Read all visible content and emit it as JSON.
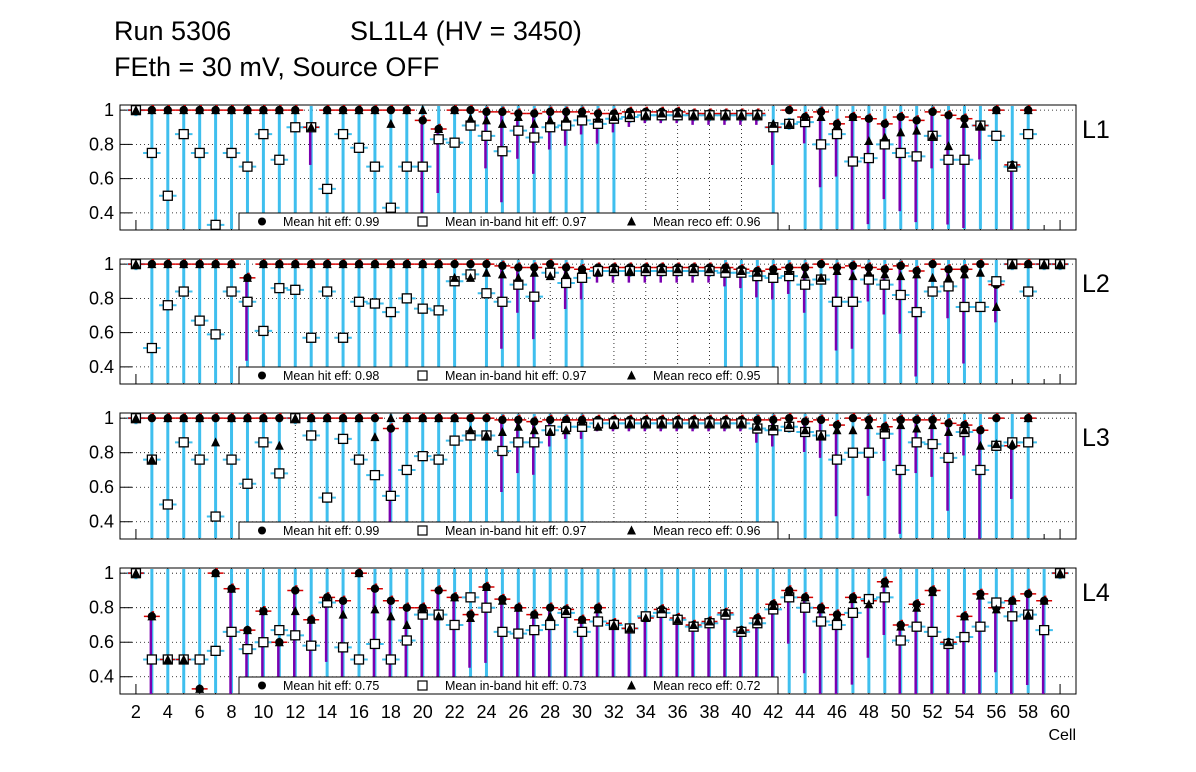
{
  "header": {
    "run": "Run 5306",
    "superlayer": "SL1L4 (HV = 3450)",
    "conditions": "FEth = 30 mV, Source OFF"
  },
  "chart_data": {
    "type": "scatter",
    "xlabel": "Cell",
    "x_ticks": [
      2,
      4,
      6,
      8,
      10,
      12,
      14,
      16,
      18,
      20,
      22,
      24,
      26,
      28,
      30,
      32,
      34,
      36,
      38,
      40,
      42,
      44,
      46,
      48,
      50,
      52,
      54,
      56,
      58,
      60
    ],
    "xlim": [
      1,
      61
    ],
    "ylim": [
      0.3,
      1.03
    ],
    "y_ticks": [
      0.4,
      0.6,
      0.8,
      1
    ],
    "y_tick_labels": [
      "0.4",
      "0.6",
      "0.8",
      "1"
    ],
    "grid": true,
    "colors": {
      "hit": "#000000",
      "inband": "#000000",
      "reco": "#000000",
      "bar_cyan": "#3fbfee",
      "bar_purple": "#7a00b0",
      "bar_red": "#d40000"
    },
    "legend_labels": {
      "hit": "Mean hit  eff:",
      "inband": "Mean in-band hit eff:",
      "reco": "Mean reco eff:"
    },
    "panels": [
      {
        "name": "L1",
        "mean_hit": "0.99",
        "mean_inband": "0.97",
        "mean_reco": "0.96",
        "cells": [
          2,
          3,
          4,
          5,
          6,
          7,
          8,
          9,
          10,
          11,
          12,
          13,
          14,
          15,
          16,
          17,
          18,
          19,
          20,
          21,
          22,
          23,
          24,
          25,
          26,
          27,
          28,
          29,
          30,
          31,
          32,
          33,
          34,
          35,
          36,
          37,
          38,
          39,
          40,
          41,
          42,
          43,
          44,
          45,
          46,
          47,
          48,
          49,
          50,
          51,
          52,
          53,
          54,
          55,
          56,
          57,
          58
        ],
        "hit": [
          1,
          1,
          1,
          1,
          1,
          1,
          1,
          1,
          1,
          1,
          1,
          0.9,
          1,
          1,
          1,
          1,
          1,
          1,
          0.94,
          0.89,
          1,
          1,
          0.99,
          0.99,
          0.98,
          0.98,
          0.99,
          0.99,
          0.99,
          0.98,
          0.98,
          0.99,
          0.99,
          0.99,
          0.99,
          0.98,
          0.98,
          0.98,
          0.98,
          0.98,
          0.9,
          1,
          0.96,
          0.99,
          0.92,
          0.96,
          0.95,
          0.92,
          0.96,
          0.94,
          0.99,
          0.97,
          0.95,
          0.91,
          1,
          0.68,
          1
        ],
        "inband": [
          1,
          0.75,
          0.5,
          0.86,
          0.75,
          0.33,
          0.75,
          0.67,
          0.86,
          0.71,
          0.9,
          0.9,
          0.54,
          0.86,
          0.78,
          0.67,
          0.43,
          0.67,
          0.67,
          0.83,
          0.81,
          0.91,
          0.85,
          0.76,
          0.88,
          0.84,
          0.9,
          0.91,
          0.94,
          0.92,
          0.95,
          0.96,
          0.97,
          0.97,
          0.97,
          0.97,
          0.97,
          0.97,
          0.97,
          0.97,
          0.9,
          0.92,
          0.93,
          0.8,
          0.86,
          0.7,
          0.72,
          0.8,
          0.75,
          0.73,
          0.85,
          0.71,
          0.71,
          0.91,
          0.85,
          0.67,
          0.86
        ],
        "reco": [
          1,
          1,
          1,
          1,
          1,
          1,
          1,
          1,
          1,
          1,
          1,
          0.9,
          1,
          1,
          1,
          1,
          0.92,
          1,
          1,
          0.89,
          1,
          0.95,
          0.94,
          0.92,
          0.96,
          0.92,
          0.94,
          0.95,
          0.98,
          0.95,
          0.96,
          0.97,
          0.97,
          0.98,
          0.98,
          0.97,
          0.97,
          0.97,
          0.97,
          0.97,
          0.92,
          0.92,
          0.96,
          0.96,
          0.91,
          0.96,
          0.82,
          0.84,
          0.87,
          0.88,
          0.85,
          0.79,
          0.92,
          0.91,
          1,
          0.68,
          1
        ]
      },
      {
        "name": "L2",
        "mean_hit": "0.98",
        "mean_inband": "0.97",
        "mean_reco": "0.95",
        "cells": [
          2,
          3,
          4,
          5,
          6,
          7,
          8,
          9,
          10,
          11,
          12,
          13,
          14,
          15,
          16,
          17,
          18,
          19,
          20,
          21,
          22,
          23,
          24,
          25,
          26,
          27,
          28,
          29,
          30,
          31,
          32,
          33,
          34,
          35,
          36,
          37,
          38,
          39,
          40,
          41,
          42,
          43,
          44,
          45,
          46,
          47,
          48,
          49,
          50,
          51,
          52,
          53,
          54,
          55,
          56,
          57,
          58,
          59,
          60
        ],
        "hit": [
          1,
          1,
          1,
          1,
          1,
          1,
          1,
          0.92,
          1,
          1,
          1,
          1,
          1,
          1,
          1,
          1,
          1,
          1,
          1,
          1,
          1,
          1,
          1,
          0.99,
          0.98,
          0.98,
          1,
          0.98,
          0.97,
          0.98,
          0.98,
          0.98,
          0.98,
          0.98,
          0.98,
          0.98,
          0.98,
          0.98,
          0.97,
          0.96,
          0.97,
          0.98,
          0.98,
          1,
          0.98,
          0.99,
          0.98,
          0.97,
          0.99,
          0.96,
          1,
          0.97,
          0.97,
          1,
          0.88,
          1,
          1,
          1,
          1
        ],
        "inband": [
          1,
          0.51,
          0.76,
          0.84,
          0.67,
          0.59,
          0.84,
          0.78,
          0.61,
          0.86,
          0.85,
          0.57,
          0.84,
          0.57,
          0.78,
          0.77,
          0.72,
          0.8,
          0.74,
          0.73,
          0.9,
          0.94,
          0.83,
          0.78,
          0.88,
          0.81,
          0.95,
          0.89,
          0.92,
          0.96,
          0.96,
          0.96,
          0.96,
          0.96,
          0.96,
          0.96,
          0.96,
          0.95,
          0.95,
          0.93,
          0.92,
          0.93,
          0.88,
          0.91,
          0.78,
          0.78,
          0.91,
          0.88,
          0.82,
          0.72,
          0.84,
          0.87,
          0.75,
          0.75,
          0.9,
          1,
          0.84,
          1,
          1
        ],
        "reco": [
          1,
          1,
          1,
          1,
          1,
          1,
          1,
          0.92,
          1,
          1,
          1,
          1,
          1,
          1,
          1,
          1,
          1,
          1,
          1,
          1,
          0.92,
          0.92,
          0.95,
          0.94,
          0.92,
          0.95,
          0.93,
          0.94,
          0.97,
          0.95,
          0.97,
          0.96,
          0.97,
          0.97,
          0.97,
          0.97,
          0.97,
          0.97,
          0.96,
          0.95,
          0.96,
          0.96,
          0.94,
          0.92,
          0.96,
          0.93,
          0.95,
          0.94,
          0.93,
          0.94,
          0.92,
          0.92,
          0.94,
          0.95,
          0.75,
          1,
          1,
          1,
          1
        ]
      },
      {
        "name": "L3",
        "mean_hit": "0.99",
        "mean_inband": "0.97",
        "mean_reco": "0.96",
        "cells": [
          2,
          3,
          4,
          5,
          6,
          7,
          8,
          9,
          10,
          11,
          12,
          13,
          14,
          15,
          16,
          17,
          18,
          19,
          20,
          21,
          22,
          23,
          24,
          25,
          26,
          27,
          28,
          29,
          30,
          31,
          32,
          33,
          34,
          35,
          36,
          37,
          38,
          39,
          40,
          41,
          42,
          43,
          44,
          45,
          46,
          47,
          48,
          49,
          50,
          51,
          52,
          53,
          54,
          55,
          56,
          57,
          58
        ],
        "hit": [
          1,
          1,
          1,
          1,
          1,
          1,
          1,
          1,
          1,
          1,
          1,
          1,
          1,
          1,
          1,
          1,
          0.94,
          1,
          1,
          1,
          1,
          1,
          1,
          0.99,
          0.99,
          0.98,
          0.99,
          0.99,
          0.99,
          0.99,
          0.99,
          0.99,
          0.99,
          0.99,
          0.99,
          0.99,
          0.99,
          0.99,
          0.99,
          0.99,
          0.99,
          1,
          0.98,
          0.99,
          0.96,
          1,
          0.99,
          0.95,
          0.99,
          0.99,
          0.99,
          0.97,
          0.96,
          0.93,
          1,
          0.84,
          1
        ],
        "inband": [
          1,
          0.76,
          0.5,
          0.86,
          0.76,
          0.43,
          0.76,
          0.62,
          0.86,
          0.68,
          1,
          0.9,
          0.54,
          0.88,
          0.76,
          0.67,
          0.55,
          0.7,
          0.78,
          0.76,
          0.87,
          0.9,
          0.9,
          0.81,
          0.86,
          0.86,
          0.93,
          0.95,
          0.95,
          0.97,
          0.97,
          0.97,
          0.97,
          0.97,
          0.97,
          0.97,
          0.97,
          0.97,
          0.97,
          0.94,
          0.93,
          0.95,
          0.92,
          0.9,
          0.76,
          0.8,
          0.8,
          0.91,
          0.7,
          0.86,
          0.85,
          0.77,
          0.92,
          0.7,
          0.84,
          0.86,
          0.86
        ],
        "reco": [
          1,
          0.76,
          1,
          1,
          1,
          0.86,
          1,
          1,
          1,
          0.84,
          1,
          1,
          1,
          1,
          1,
          0.89,
          1,
          1,
          1,
          1,
          1,
          0.93,
          0.9,
          0.92,
          0.95,
          0.93,
          0.92,
          0.93,
          0.98,
          0.95,
          0.96,
          0.97,
          0.97,
          0.97,
          0.97,
          0.97,
          0.97,
          0.97,
          0.97,
          0.95,
          0.95,
          0.96,
          0.93,
          0.9,
          0.93,
          0.93,
          0.96,
          0.94,
          0.96,
          0.94,
          0.96,
          0.92,
          0.93,
          0.84,
          0.85,
          0.85,
          1
        ]
      },
      {
        "name": "L4",
        "mean_hit": "0.75",
        "mean_inband": "0.73",
        "mean_reco": "0.72",
        "cells": [
          2,
          3,
          4,
          5,
          6,
          7,
          8,
          9,
          10,
          11,
          12,
          13,
          14,
          15,
          16,
          17,
          18,
          19,
          20,
          21,
          22,
          23,
          24,
          25,
          26,
          27,
          28,
          29,
          30,
          31,
          32,
          33,
          34,
          35,
          36,
          37,
          38,
          39,
          40,
          41,
          42,
          43,
          44,
          45,
          46,
          47,
          48,
          49,
          50,
          51,
          52,
          53,
          54,
          55,
          56,
          57,
          58,
          59,
          60
        ],
        "hit": [
          1,
          0.75,
          0.5,
          0.5,
          0.33,
          1,
          0.91,
          0.67,
          0.78,
          0.6,
          0.9,
          0.73,
          0.86,
          0.84,
          1,
          0.91,
          0.84,
          0.8,
          0.8,
          0.9,
          0.86,
          0.76,
          0.92,
          0.85,
          0.8,
          0.76,
          0.8,
          0.79,
          0.73,
          0.8,
          0.71,
          0.68,
          0.74,
          0.79,
          0.74,
          0.7,
          0.72,
          0.77,
          0.67,
          0.74,
          0.82,
          0.9,
          0.86,
          0.8,
          0.76,
          0.86,
          0.84,
          0.95,
          0.7,
          0.82,
          0.9,
          0.6,
          0.75,
          0.88,
          0.8,
          0.84,
          0.88,
          0.84,
          1
        ],
        "inband": [
          1,
          0.5,
          0.5,
          0.5,
          0.5,
          0.55,
          0.66,
          0.56,
          0.6,
          0.67,
          0.64,
          0.58,
          0.83,
          0.57,
          0.5,
          0.59,
          0.5,
          0.61,
          0.76,
          0.76,
          0.7,
          0.86,
          0.8,
          0.66,
          0.65,
          0.67,
          0.7,
          0.77,
          0.66,
          0.72,
          0.7,
          0.68,
          0.75,
          0.77,
          0.73,
          0.69,
          0.71,
          0.76,
          0.66,
          0.71,
          0.79,
          0.86,
          0.8,
          0.72,
          0.7,
          0.77,
          0.85,
          0.86,
          0.61,
          0.69,
          0.66,
          0.59,
          0.63,
          0.69,
          0.83,
          0.75,
          0.76,
          0.67,
          1
        ],
        "reco": [
          1,
          0.75,
          0.5,
          0.5,
          0.33,
          1,
          0.91,
          0.67,
          0.78,
          0.6,
          0.78,
          0.73,
          0.86,
          0.76,
          1,
          0.79,
          0.75,
          0.7,
          0.79,
          0.75,
          0.86,
          0.74,
          0.92,
          0.84,
          0.8,
          0.76,
          0.75,
          0.78,
          0.73,
          0.79,
          0.7,
          0.68,
          0.74,
          0.79,
          0.73,
          0.7,
          0.72,
          0.77,
          0.67,
          0.72,
          0.81,
          0.89,
          0.86,
          0.79,
          0.75,
          0.85,
          0.82,
          0.94,
          0.69,
          0.8,
          0.89,
          0.6,
          0.75,
          0.87,
          0.79,
          0.84,
          0.76,
          0.84,
          1
        ]
      }
    ]
  }
}
